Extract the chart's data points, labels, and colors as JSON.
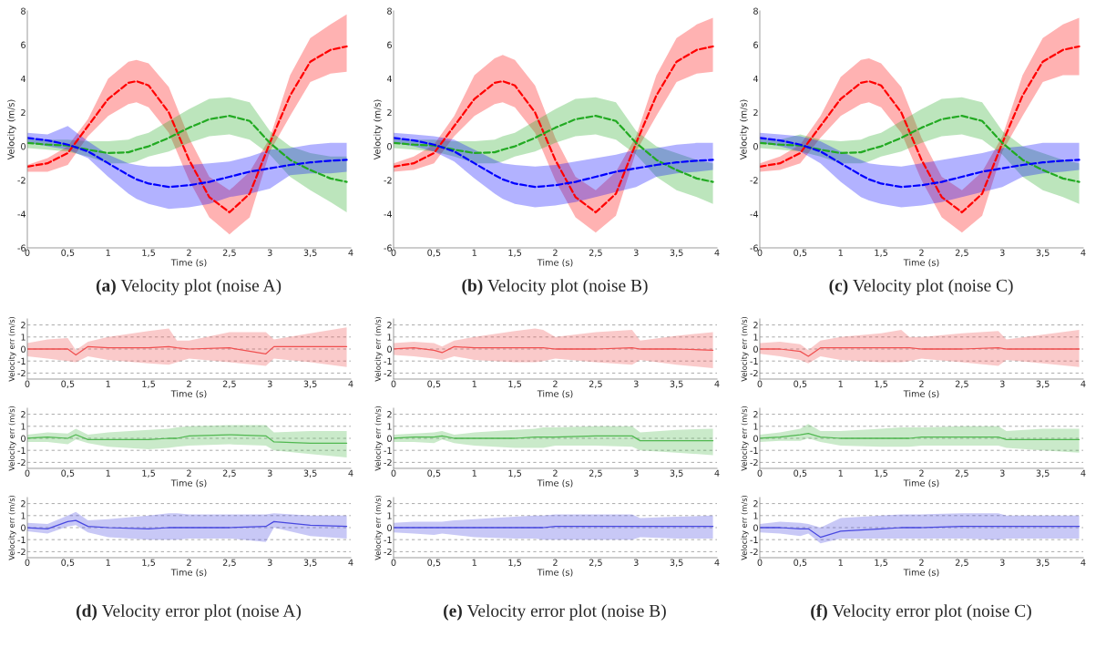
{
  "chart_data": [
    {
      "type": "line",
      "xlabel": "Time (s)",
      "ylabel": "Velocity (m/s)",
      "xlim": [
        0,
        4
      ],
      "ylim": [
        -6,
        8
      ],
      "xticks": [
        0,
        {
          "value": 0.5,
          "label": "0,5"
        },
        1,
        {
          "value": 1.5,
          "label": "1,5"
        },
        2,
        {
          "value": 2.5,
          "label": "2,5"
        },
        3,
        {
          "value": 3.5,
          "label": "3,5"
        },
        4
      ],
      "yticks": [
        -6,
        -4,
        -2,
        0,
        2,
        4,
        6,
        8
      ],
      "line_style": "dashed",
      "annotations": [
        "(a) Velocity plot (noise A)"
      ],
      "x": [
        0,
        0.25,
        0.5,
        0.75,
        1,
        1.25,
        1.35,
        1.5,
        1.75,
        2,
        2.25,
        2.5,
        2.75,
        3,
        3.25,
        3.5,
        3.75,
        3.95
      ],
      "series": [
        {
          "color": "#ff0000",
          "values": [
            -1.2,
            -1.0,
            -0.4,
            1.2,
            2.8,
            3.75,
            3.85,
            3.6,
            2.0,
            -0.8,
            -3.0,
            -3.9,
            -2.8,
            0.2,
            3.0,
            5.0,
            5.7,
            5.9
          ],
          "lower": [
            -1.5,
            -1.5,
            -1.1,
            0.6,
            1.8,
            2.5,
            2.6,
            2.3,
            0.8,
            -2.0,
            -4.2,
            -5.2,
            -4.2,
            -0.3,
            1.8,
            3.8,
            4.3,
            4.4
          ],
          "upper": [
            -1.1,
            -0.7,
            0.0,
            1.6,
            4.0,
            5.0,
            5.1,
            4.9,
            3.5,
            0.5,
            -1.8,
            -2.6,
            -1.5,
            0.5,
            4.2,
            6.4,
            7.2,
            7.8
          ]
        },
        {
          "color": "#22aa22",
          "values": [
            0.2,
            0.1,
            0.05,
            -0.2,
            -0.4,
            -0.35,
            -0.2,
            0.0,
            0.5,
            1.1,
            1.6,
            1.8,
            1.5,
            0.2,
            -0.8,
            -1.4,
            -1.9,
            -2.1
          ],
          "lower": [
            -0.1,
            -0.2,
            -0.3,
            -0.6,
            -1.0,
            -1.0,
            -0.9,
            -0.6,
            -0.3,
            0.2,
            0.6,
            0.7,
            0.4,
            -0.5,
            -1.8,
            -2.6,
            -3.3,
            -3.9
          ],
          "upper": [
            0.5,
            0.4,
            0.4,
            0.3,
            0.3,
            0.4,
            0.6,
            0.8,
            1.5,
            2.2,
            2.8,
            2.9,
            2.6,
            0.9,
            0.0,
            -0.4,
            -0.6,
            -0.6
          ]
        },
        {
          "color": "#0000ff",
          "values": [
            0.5,
            0.35,
            0.1,
            -0.3,
            -1.0,
            -1.7,
            -1.95,
            -2.2,
            -2.4,
            -2.3,
            -2.1,
            -1.8,
            -1.5,
            -1.3,
            -1.1,
            -0.95,
            -0.85,
            -0.8
          ],
          "lower": [
            0.2,
            0.0,
            -0.2,
            -0.7,
            -1.8,
            -2.8,
            -3.1,
            -3.4,
            -3.7,
            -3.6,
            -3.4,
            -3.0,
            -2.8,
            -2.5,
            -1.7,
            -1.6,
            -1.6,
            -1.5
          ],
          "upper": [
            0.8,
            0.7,
            1.2,
            0.3,
            -0.5,
            -1.0,
            -1.1,
            -1.2,
            -1.2,
            -1.1,
            -1.0,
            -0.9,
            -0.6,
            -0.2,
            -0.1,
            0.1,
            0.2,
            0.2
          ]
        }
      ]
    },
    {
      "type": "line",
      "xlabel": "Time (s)",
      "ylabel": "Velocity (m/s)",
      "xlim": [
        0,
        4
      ],
      "ylim": [
        -6,
        8
      ],
      "xticks": [
        0,
        {
          "value": 0.5,
          "label": "0,5"
        },
        1,
        {
          "value": 1.5,
          "label": "1,5"
        },
        2,
        {
          "value": 2.5,
          "label": "2,5"
        },
        3,
        {
          "value": 3.5,
          "label": "3,5"
        },
        4
      ],
      "yticks": [
        -6,
        -4,
        -2,
        0,
        2,
        4,
        6,
        8
      ],
      "line_style": "dashed",
      "annotations": [
        "(b) Velocity plot (noise B)"
      ],
      "x": [
        0,
        0.25,
        0.5,
        0.75,
        1,
        1.25,
        1.35,
        1.5,
        1.75,
        2,
        2.25,
        2.5,
        2.75,
        3,
        3.25,
        3.5,
        3.75,
        3.95
      ],
      "series": [
        {
          "color": "#ff0000",
          "values": [
            -1.2,
            -1.0,
            -0.4,
            1.2,
            2.8,
            3.75,
            3.85,
            3.6,
            2.0,
            -0.8,
            -3.0,
            -3.9,
            -2.8,
            0.2,
            3.0,
            5.0,
            5.7,
            5.9
          ],
          "lower": [
            -1.5,
            -1.4,
            -1.0,
            0.6,
            1.8,
            2.5,
            2.6,
            2.3,
            0.8,
            -2.0,
            -4.2,
            -5.1,
            -4.1,
            -0.3,
            1.8,
            3.8,
            4.3,
            4.4
          ],
          "upper": [
            -1.0,
            -0.6,
            0.1,
            1.8,
            4.2,
            5.2,
            5.4,
            5.1,
            3.6,
            0.5,
            -1.8,
            -2.6,
            -1.5,
            0.6,
            4.2,
            6.4,
            7.2,
            7.6
          ]
        },
        {
          "color": "#22aa22",
          "values": [
            0.2,
            0.1,
            0.05,
            -0.2,
            -0.4,
            -0.35,
            -0.2,
            0.0,
            0.5,
            1.1,
            1.6,
            1.8,
            1.5,
            0.2,
            -0.8,
            -1.4,
            -1.9,
            -2.1
          ],
          "lower": [
            -0.1,
            -0.2,
            -0.3,
            -0.6,
            -1.0,
            -1.0,
            -0.9,
            -0.6,
            -0.3,
            0.2,
            0.6,
            0.7,
            0.4,
            -0.5,
            -1.8,
            -2.6,
            -3.0,
            -3.4
          ],
          "upper": [
            0.5,
            0.4,
            0.4,
            0.3,
            0.3,
            0.4,
            0.6,
            0.8,
            1.5,
            2.2,
            2.8,
            2.9,
            2.6,
            0.9,
            0.0,
            -0.4,
            -0.8,
            -1.0
          ]
        },
        {
          "color": "#0000ff",
          "values": [
            0.5,
            0.35,
            0.1,
            -0.3,
            -1.0,
            -1.7,
            -1.95,
            -2.2,
            -2.4,
            -2.3,
            -2.1,
            -1.8,
            -1.5,
            -1.3,
            -1.1,
            -0.95,
            -0.85,
            -0.8
          ],
          "lower": [
            0.2,
            0.0,
            -0.3,
            -0.9,
            -1.9,
            -2.8,
            -3.1,
            -3.4,
            -3.6,
            -3.5,
            -3.3,
            -3.0,
            -2.7,
            -2.4,
            -1.8,
            -1.6,
            -1.5,
            -1.4
          ],
          "upper": [
            0.8,
            0.7,
            0.6,
            0.4,
            -0.2,
            -0.8,
            -1.0,
            -1.1,
            -1.2,
            -1.1,
            -0.9,
            -0.7,
            -0.5,
            -0.2,
            -0.1,
            0.1,
            0.2,
            0.2
          ]
        }
      ]
    },
    {
      "type": "line",
      "xlabel": "Time (s)",
      "ylabel": "Velocity (m/s)",
      "xlim": [
        0,
        4
      ],
      "ylim": [
        -6,
        8
      ],
      "xticks": [
        0,
        {
          "value": 0.5,
          "label": "0,5"
        },
        1,
        {
          "value": 1.5,
          "label": "1,5"
        },
        2,
        {
          "value": 2.5,
          "label": "2,5"
        },
        3,
        {
          "value": 3.5,
          "label": "3,5"
        },
        4
      ],
      "yticks": [
        -6,
        -4,
        -2,
        0,
        2,
        4,
        6,
        8
      ],
      "line_style": "dashed",
      "annotations": [
        "(c) Velocity plot (noise C)"
      ],
      "x": [
        0,
        0.25,
        0.5,
        0.75,
        1,
        1.25,
        1.35,
        1.5,
        1.75,
        2,
        2.25,
        2.5,
        2.75,
        3,
        3.25,
        3.5,
        3.75,
        3.95
      ],
      "series": [
        {
          "color": "#ff0000",
          "values": [
            -1.2,
            -1.0,
            -0.4,
            1.2,
            2.8,
            3.75,
            3.85,
            3.6,
            2.0,
            -0.8,
            -3.0,
            -3.9,
            -2.8,
            0.2,
            3.0,
            5.0,
            5.7,
            5.9
          ],
          "lower": [
            -1.5,
            -1.4,
            -1.0,
            0.5,
            1.8,
            2.5,
            2.6,
            2.3,
            0.8,
            -2.0,
            -4.2,
            -5.1,
            -4.1,
            -0.3,
            1.8,
            3.8,
            4.2,
            4.2
          ],
          "upper": [
            -1.0,
            -0.6,
            0.1,
            1.8,
            4.1,
            5.1,
            5.2,
            4.9,
            3.5,
            0.5,
            -1.8,
            -2.6,
            -1.5,
            0.6,
            4.2,
            6.4,
            7.2,
            7.6
          ]
        },
        {
          "color": "#22aa22",
          "values": [
            0.2,
            0.1,
            0.05,
            -0.2,
            -0.4,
            -0.35,
            -0.2,
            0.0,
            0.5,
            1.1,
            1.6,
            1.8,
            1.5,
            0.2,
            -0.8,
            -1.4,
            -1.9,
            -2.1
          ],
          "lower": [
            -0.1,
            -0.2,
            -0.3,
            -0.6,
            -1.0,
            -1.0,
            -0.9,
            -0.6,
            -0.3,
            0.2,
            0.6,
            0.7,
            0.4,
            -0.5,
            -1.8,
            -2.6,
            -3.0,
            -3.4
          ],
          "upper": [
            0.5,
            0.4,
            0.7,
            0.4,
            0.3,
            0.4,
            0.6,
            0.8,
            1.5,
            2.2,
            2.8,
            2.9,
            2.6,
            0.9,
            0.0,
            -0.4,
            -0.8,
            -1.0
          ]
        },
        {
          "color": "#0000ff",
          "values": [
            0.5,
            0.35,
            0.1,
            -0.3,
            -1.0,
            -1.7,
            -1.95,
            -2.2,
            -2.4,
            -2.3,
            -2.1,
            -1.8,
            -1.5,
            -1.3,
            -1.1,
            -0.95,
            -0.85,
            -0.8
          ],
          "lower": [
            0.2,
            0.0,
            -0.3,
            -1.0,
            -2.1,
            -3.0,
            -3.2,
            -3.4,
            -3.6,
            -3.5,
            -3.3,
            -3.0,
            -2.7,
            -2.4,
            -1.8,
            -1.6,
            -1.5,
            -1.4
          ],
          "upper": [
            0.8,
            0.7,
            0.6,
            0.3,
            -0.3,
            -0.8,
            -1.0,
            -1.1,
            -1.2,
            -1.0,
            -0.8,
            -0.6,
            -0.4,
            -0.1,
            0.0,
            0.2,
            0.2,
            0.2
          ]
        }
      ]
    },
    {
      "type": "line",
      "xlabel": "Time (s)",
      "ylabel": "Velocity err (m/s)",
      "xlim": [
        0,
        4
      ],
      "ylim": [
        -2.5,
        2.5
      ],
      "xticks": [
        0,
        {
          "value": 0.5,
          "label": "0,5"
        },
        1,
        {
          "value": 1.5,
          "label": "1,5"
        },
        2,
        {
          "value": 2.5,
          "label": "2,5"
        },
        3,
        {
          "value": 3.5,
          "label": "3,5"
        },
        4
      ],
      "yticks": [
        -2,
        -1,
        0,
        1,
        2
      ],
      "grid": "y",
      "line_style": "solid",
      "x": [
        0,
        0.25,
        0.5,
        0.6,
        0.75,
        1,
        1.5,
        1.75,
        1.85,
        2,
        2.5,
        2.95,
        3.05,
        3.5,
        3.95
      ],
      "series": [
        {
          "color": "#f05050",
          "values": [
            0,
            0,
            0,
            -0.5,
            0.2,
            0.1,
            0.1,
            0.2,
            0.1,
            0,
            0.1,
            -0.4,
            0.2,
            0.2,
            0.2
          ],
          "lower": [
            -0.6,
            -0.8,
            -1.0,
            -1.1,
            -0.6,
            -0.9,
            -1.2,
            -1.3,
            -1.1,
            -0.8,
            -1.1,
            -1.4,
            -0.8,
            -1.1,
            -1.5
          ],
          "upper": [
            0.5,
            0.8,
            0.9,
            -0.1,
            0.6,
            1.0,
            1.5,
            1.7,
            0.7,
            0.7,
            1.4,
            1.4,
            0.8,
            1.3,
            1.8
          ]
        }
      ]
    },
    {
      "type": "line",
      "xlabel": "Time (s)",
      "ylabel": "Velocity err (m/s)",
      "xlim": [
        0,
        4
      ],
      "ylim": [
        -2.5,
        2.5
      ],
      "xticks": [
        0,
        {
          "value": 0.5,
          "label": "0,5"
        },
        1,
        {
          "value": 1.5,
          "label": "1,5"
        },
        2,
        {
          "value": 2.5,
          "label": "2,5"
        },
        3,
        {
          "value": 3.5,
          "label": "3,5"
        },
        4
      ],
      "yticks": [
        -2,
        -1,
        0,
        1,
        2
      ],
      "grid": "y",
      "line_style": "solid",
      "x": [
        0,
        0.25,
        0.5,
        0.6,
        0.75,
        1,
        1.5,
        1.75,
        1.85,
        2,
        2.5,
        2.95,
        3.05,
        3.5,
        3.95
      ],
      "series": [
        {
          "color": "#50b850",
          "values": [
            0,
            0.1,
            0,
            0.3,
            -0.1,
            -0.1,
            -0.1,
            0,
            0,
            0.2,
            0.3,
            0.2,
            -0.3,
            -0.4,
            -0.4
          ],
          "lower": [
            -0.3,
            -0.3,
            -0.5,
            -0.1,
            -0.4,
            -0.7,
            -0.9,
            -0.8,
            -0.7,
            -0.6,
            -0.5,
            -0.6,
            -1.0,
            -1.3,
            -1.6
          ],
          "upper": [
            0.3,
            0.5,
            0.4,
            0.8,
            0.3,
            0.5,
            0.7,
            0.8,
            0.9,
            1.0,
            1.1,
            1.1,
            0.5,
            0.6,
            0.6
          ]
        }
      ]
    },
    {
      "type": "line",
      "xlabel": "Time (s)",
      "ylabel": "Velocity err (m/s)",
      "xlim": [
        0,
        4
      ],
      "ylim": [
        -2.5,
        2.5
      ],
      "xticks": [
        0,
        {
          "value": 0.5,
          "label": "0,5"
        },
        1,
        {
          "value": 1.5,
          "label": "1,5"
        },
        2,
        {
          "value": 2.5,
          "label": "2,5"
        },
        3,
        {
          "value": 3.5,
          "label": "3,5"
        },
        4
      ],
      "yticks": [
        -2,
        -1,
        0,
        1,
        2
      ],
      "grid": "y",
      "line_style": "solid",
      "annotations": [
        "(d) Velocity error plot (noise A)"
      ],
      "x": [
        0,
        0.25,
        0.5,
        0.6,
        0.75,
        1,
        1.5,
        1.75,
        1.85,
        2,
        2.5,
        2.95,
        3.05,
        3.5,
        3.95
      ],
      "series": [
        {
          "color": "#4848e0",
          "values": [
            0,
            -0.1,
            0.5,
            0.6,
            0.1,
            0,
            -0.1,
            0,
            0,
            0,
            0,
            0.1,
            0.5,
            0.2,
            0.1
          ],
          "lower": [
            -0.3,
            -0.5,
            0.1,
            0.2,
            -0.4,
            -0.8,
            -1.0,
            -1.0,
            -1.0,
            -0.9,
            -0.9,
            -1.2,
            0,
            -0.7,
            -0.9
          ],
          "upper": [
            0.4,
            0.3,
            1.0,
            1.3,
            0.6,
            0.7,
            1.0,
            1.2,
            1.2,
            1.1,
            1.1,
            1.1,
            1.2,
            1.0,
            1.0
          ]
        }
      ]
    },
    {
      "type": "line",
      "xlabel": "Time (s)",
      "ylabel": "Velocity err (m/s)",
      "xlim": [
        0,
        4
      ],
      "ylim": [
        -2.5,
        2.5
      ],
      "xticks": [
        0,
        {
          "value": 0.5,
          "label": "0,5"
        },
        1,
        {
          "value": 1.5,
          "label": "1,5"
        },
        2,
        {
          "value": 2.5,
          "label": "2,5"
        },
        3,
        {
          "value": 3.5,
          "label": "3,5"
        },
        4
      ],
      "yticks": [
        -2,
        -1,
        0,
        1,
        2
      ],
      "grid": "y",
      "line_style": "solid",
      "x": [
        0,
        0.25,
        0.5,
        0.6,
        0.75,
        1,
        1.5,
        1.75,
        1.85,
        2,
        2.5,
        2.95,
        3.05,
        3.5,
        3.95
      ],
      "series": [
        {
          "color": "#f05050",
          "values": [
            0,
            0.1,
            -0.1,
            -0.3,
            0.2,
            0.1,
            0.1,
            0.1,
            0.1,
            0,
            0,
            0.1,
            0,
            0,
            -0.1
          ],
          "lower": [
            -0.5,
            -0.6,
            -0.8,
            -0.9,
            -0.6,
            -0.9,
            -1.1,
            -1.1,
            -1.0,
            -0.8,
            -1.1,
            -1.3,
            -0.9,
            -1.3,
            -1.6
          ],
          "upper": [
            0.5,
            0.6,
            0.5,
            0.2,
            0.7,
            1.0,
            1.5,
            1.7,
            1.6,
            1.0,
            1.4,
            1.6,
            0.7,
            1.1,
            1.4
          ]
        }
      ]
    },
    {
      "type": "line",
      "xlabel": "Time (s)",
      "ylabel": "Velocity err (m/s)",
      "xlim": [
        0,
        4
      ],
      "ylim": [
        -2.5,
        2.5
      ],
      "xticks": [
        0,
        {
          "value": 0.5,
          "label": "0,5"
        },
        1,
        {
          "value": 1.5,
          "label": "1,5"
        },
        2,
        {
          "value": 2.5,
          "label": "2,5"
        },
        3,
        {
          "value": 3.5,
          "label": "3,5"
        },
        4
      ],
      "yticks": [
        -2,
        -1,
        0,
        1,
        2
      ],
      "grid": "y",
      "line_style": "solid",
      "x": [
        0,
        0.25,
        0.5,
        0.6,
        0.75,
        1,
        1.5,
        1.75,
        1.85,
        2,
        2.5,
        2.95,
        3.05,
        3.5,
        3.95
      ],
      "series": [
        {
          "color": "#50b850",
          "values": [
            0,
            0.1,
            0.1,
            0.2,
            0,
            0,
            0,
            0.1,
            0.1,
            0.1,
            0.2,
            0.2,
            -0.2,
            -0.2,
            -0.2
          ],
          "lower": [
            -0.3,
            -0.3,
            -0.4,
            -0.1,
            -0.4,
            -0.6,
            -0.8,
            -0.8,
            -0.8,
            -0.6,
            -0.6,
            -0.7,
            -1.0,
            -1.2,
            -1.4
          ],
          "upper": [
            0.3,
            0.4,
            0.5,
            0.6,
            0.3,
            0.5,
            0.7,
            0.8,
            0.9,
            0.9,
            1.0,
            1.0,
            0.5,
            0.7,
            0.8
          ]
        }
      ]
    },
    {
      "type": "line",
      "xlabel": "Time (s)",
      "ylabel": "Velocity err (m/s)",
      "xlim": [
        0,
        4
      ],
      "ylim": [
        -2.5,
        2.5
      ],
      "xticks": [
        0,
        {
          "value": 0.5,
          "label": "0,5"
        },
        1,
        {
          "value": 1.5,
          "label": "1,5"
        },
        2,
        {
          "value": 2.5,
          "label": "2,5"
        },
        3,
        {
          "value": 3.5,
          "label": "3,5"
        },
        4
      ],
      "yticks": [
        -2,
        -1,
        0,
        1,
        2
      ],
      "grid": "y",
      "line_style": "solid",
      "annotations": [
        "(e) Velocity error plot (noise B)"
      ],
      "x": [
        0,
        0.25,
        0.5,
        0.6,
        0.75,
        1,
        1.5,
        1.75,
        1.85,
        2,
        2.5,
        2.95,
        3.05,
        3.5,
        3.95
      ],
      "series": [
        {
          "color": "#4848e0",
          "values": [
            0,
            0,
            0,
            0,
            0,
            0,
            0,
            0,
            0,
            0.1,
            0.1,
            0.1,
            0.1,
            0.1,
            0.1
          ],
          "lower": [
            -0.4,
            -0.5,
            -0.6,
            -0.5,
            -0.6,
            -0.8,
            -0.9,
            -0.9,
            -1.0,
            -1.0,
            -1.0,
            -1.0,
            -0.8,
            -0.9,
            -0.9
          ],
          "upper": [
            0.4,
            0.5,
            0.5,
            0.5,
            0.6,
            0.7,
            0.9,
            1.0,
            1.0,
            1.1,
            1.1,
            1.1,
            0.8,
            0.9,
            1.0
          ]
        }
      ]
    },
    {
      "type": "line",
      "xlabel": "Time (s)",
      "ylabel": "Velocity err (m/s)",
      "xlim": [
        0,
        4
      ],
      "ylim": [
        -2.5,
        2.5
      ],
      "xticks": [
        0,
        {
          "value": 0.5,
          "label": "0,5"
        },
        1,
        {
          "value": 1.5,
          "label": "1,5"
        },
        2,
        {
          "value": 2.5,
          "label": "2,5"
        },
        3,
        {
          "value": 3.5,
          "label": "3,5"
        },
        4
      ],
      "yticks": [
        -2,
        -1,
        0,
        1,
        2
      ],
      "grid": "y",
      "line_style": "solid",
      "x": [
        0,
        0.25,
        0.5,
        0.6,
        0.75,
        1,
        1.5,
        1.75,
        1.85,
        2,
        2.5,
        2.95,
        3.05,
        3.5,
        3.95
      ],
      "series": [
        {
          "color": "#f05050",
          "values": [
            0,
            0,
            -0.2,
            -0.6,
            0.1,
            0.1,
            0.1,
            0.1,
            0.1,
            0,
            0,
            0.1,
            0,
            0,
            0
          ],
          "lower": [
            -0.4,
            -0.6,
            -0.9,
            -1.2,
            -0.6,
            -0.9,
            -1.1,
            -1.1,
            -1.0,
            -0.8,
            -1.1,
            -1.4,
            -0.9,
            -1.2,
            -1.5
          ],
          "upper": [
            0.5,
            0.6,
            0.4,
            -0.1,
            0.7,
            1.0,
            1.3,
            1.6,
            1.0,
            1.0,
            1.3,
            1.5,
            0.8,
            1.2,
            1.6
          ]
        }
      ]
    },
    {
      "type": "line",
      "xlabel": "Time (s)",
      "ylabel": "Velocity err (m/s)",
      "xlim": [
        0,
        4
      ],
      "ylim": [
        -2.5,
        2.5
      ],
      "xticks": [
        0,
        {
          "value": 0.5,
          "label": "0,5"
        },
        1,
        {
          "value": 1.5,
          "label": "1,5"
        },
        2,
        {
          "value": 2.5,
          "label": "2,5"
        },
        3,
        {
          "value": 3.5,
          "label": "3,5"
        },
        4
      ],
      "yticks": [
        -2,
        -1,
        0,
        1,
        2
      ],
      "grid": "y",
      "line_style": "solid",
      "x": [
        0,
        0.25,
        0.5,
        0.6,
        0.75,
        1,
        1.5,
        1.75,
        1.85,
        2,
        2.5,
        2.95,
        3.05,
        3.5,
        3.95
      ],
      "series": [
        {
          "color": "#50b850",
          "values": [
            0,
            0.1,
            0.3,
            0.4,
            0.1,
            0,
            0,
            0,
            0,
            0.1,
            0.1,
            0.1,
            -0.1,
            -0.1,
            -0.1
          ],
          "lower": [
            -0.3,
            -0.2,
            -0.2,
            0,
            -0.3,
            -0.6,
            -0.7,
            -0.7,
            -0.7,
            -0.6,
            -0.6,
            -0.6,
            -0.8,
            -1.0,
            -1.2
          ],
          "upper": [
            0.3,
            0.5,
            0.8,
            1.2,
            0.6,
            0.6,
            0.8,
            0.9,
            0.9,
            0.9,
            1.0,
            1.0,
            0.6,
            0.8,
            0.8
          ]
        }
      ]
    },
    {
      "type": "line",
      "xlabel": "Time (s)",
      "ylabel": "Velocity err (m/s)",
      "xlim": [
        0,
        4
      ],
      "ylim": [
        -2.5,
        2.5
      ],
      "xticks": [
        0,
        {
          "value": 0.5,
          "label": "0,5"
        },
        1,
        {
          "value": 1.5,
          "label": "1,5"
        },
        2,
        {
          "value": 2.5,
          "label": "2,5"
        },
        3,
        {
          "value": 3.5,
          "label": "3,5"
        },
        4
      ],
      "yticks": [
        -2,
        -1,
        0,
        1,
        2
      ],
      "grid": "y",
      "line_style": "solid",
      "annotations": [
        "(f) Velocity error plot (noise C)"
      ],
      "x": [
        0,
        0.25,
        0.5,
        0.6,
        0.75,
        1,
        1.5,
        1.75,
        1.85,
        2,
        2.5,
        2.95,
        3.05,
        3.5,
        3.95
      ],
      "series": [
        {
          "color": "#4848e0",
          "values": [
            0,
            0,
            -0.1,
            -0.1,
            -0.8,
            -0.3,
            -0.1,
            0,
            0,
            0,
            0.1,
            0.1,
            0.1,
            0.1,
            0.1
          ],
          "lower": [
            -0.4,
            -0.5,
            -0.7,
            -0.5,
            -1.3,
            -0.9,
            -0.9,
            -0.9,
            -0.9,
            -0.9,
            -0.9,
            -1.0,
            -0.9,
            -0.9,
            -0.9
          ],
          "upper": [
            0.3,
            0.5,
            0.4,
            0.3,
            0.0,
            0.8,
            1.0,
            1.1,
            1.1,
            1.1,
            1.2,
            1.2,
            1.0,
            1.0,
            1.0
          ]
        }
      ]
    }
  ]
}
